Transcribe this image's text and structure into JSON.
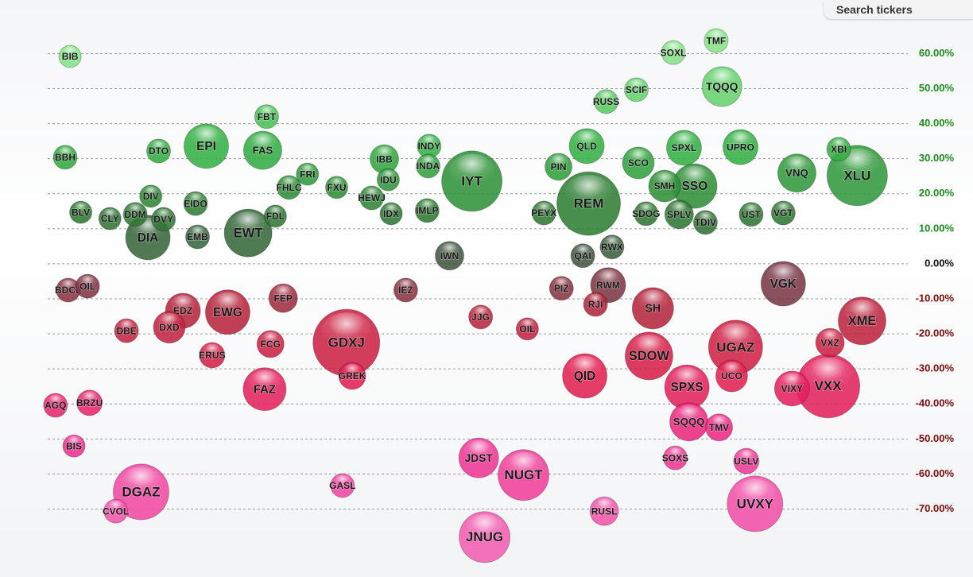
{
  "search": {
    "placeholder": "Search tickers"
  },
  "chart_data": {
    "type": "bubble",
    "categories": [
      "BIB",
      "TMF",
      "SOXL",
      "TQQQ",
      "SCIF",
      "RUSS",
      "FBT",
      "EPI",
      "FAS",
      "DTO",
      "BBH",
      "INDY",
      "INDA",
      "IBB",
      "IDU",
      "QLD",
      "SPXL",
      "UPRO",
      "XBI",
      "XLU",
      "VNQ",
      "PIN",
      "SCO",
      "IYT",
      "SSO",
      "SMH",
      "FRI",
      "FHLC",
      "FXU",
      "HEWJ",
      "DIV",
      "EIDO",
      "REM",
      "BLV",
      "CLY",
      "DDM",
      "DVY",
      "DIA",
      "EMB",
      "EWT",
      "FDL",
      "IMLP",
      "PEYX",
      "SDOG",
      "SPLV",
      "TDIV",
      "UST",
      "VGT",
      "IDX",
      "RWX",
      "QAI",
      "IWN",
      "BDCL",
      "OIL",
      "PIZ",
      "RWM",
      "VGK",
      "IEZ",
      "FEP",
      "EWG",
      "EDZ",
      "DXD",
      "DBE",
      "JJG",
      "OIL",
      "RJI",
      "SH",
      "XME",
      "VXZ",
      "GDXJ",
      "GREK",
      "FCG",
      "ERUS",
      "FAZ",
      "QID",
      "SDOW",
      "UGAZ",
      "SPXS",
      "UCO",
      "VIXY",
      "VXX",
      "SQQQ",
      "TMV",
      "AGQ",
      "BRZU",
      "BIS",
      "SOXS",
      "USLV",
      "JDST",
      "NUGT",
      "GASL",
      "DGAZ",
      "CVOL",
      "RUSL",
      "UVXY",
      "JNUG"
    ],
    "x": [
      7.2,
      73.6,
      69.2,
      74.2,
      65.4,
      62.3,
      27.4,
      21.2,
      27.0,
      16.3,
      6.7,
      44.1,
      44.0,
      39.5,
      39.9,
      60.3,
      70.3,
      76.1,
      86.2,
      88.1,
      81.9,
      57.4,
      65.6,
      48.5,
      71.4,
      68.3,
      31.6,
      29.7,
      34.6,
      38.2,
      15.5,
      20.1,
      60.5,
      8.3,
      11.3,
      13.9,
      16.8,
      15.2,
      20.3,
      25.5,
      28.3,
      43.9,
      55.9,
      66.4,
      69.8,
      72.5,
      77.2,
      80.5,
      40.2,
      62.9,
      59.9,
      46.2,
      7.0,
      9.0,
      57.7,
      62.5,
      80.5,
      41.7,
      29.1,
      23.4,
      18.8,
      17.4,
      13.0,
      49.4,
      54.2,
      61.2,
      67.1,
      88.6,
      85.3,
      35.6,
      36.2,
      27.8,
      21.8,
      27.2,
      60.1,
      66.7,
      75.6,
      70.6,
      75.2,
      81.4,
      85.1,
      70.8,
      73.9,
      5.7,
      9.2,
      7.6,
      69.4,
      76.7,
      49.2,
      53.8,
      35.2,
      14.5,
      11.9,
      62.1,
      77.6,
      49.8
    ],
    "values": [
      59.2,
      63.7,
      60.3,
      50.6,
      49.7,
      46.3,
      42.0,
      33.6,
      32.4,
      32.2,
      30.4,
      33.6,
      27.9,
      29.9,
      24.0,
      33.6,
      33.1,
      33.3,
      32.7,
      25.2,
      25.9,
      27.7,
      28.8,
      23.6,
      22.2,
      22.2,
      25.6,
      21.8,
      21.8,
      18.8,
      19.3,
      17.2,
      17.2,
      14.7,
      12.9,
      14.1,
      12.7,
      7.5,
      7.7,
      8.8,
      13.6,
      15.2,
      14.5,
      14.3,
      14.1,
      11.8,
      14.1,
      14.5,
      14.3,
      4.8,
      2.3,
      2.3,
      -7.5,
      -6.4,
      -7.0,
      -6.1,
      -5.7,
      -7.5,
      -9.8,
      -13.8,
      -13.4,
      -18.1,
      -19.1,
      -15.2,
      -18.6,
      -11.6,
      -12.7,
      -16.3,
      -22.5,
      -22.5,
      -32.0,
      -22.9,
      -26.1,
      -35.8,
      -32.0,
      -26.3,
      -23.8,
      -35.2,
      -32.0,
      -35.6,
      -34.9,
      -45.1,
      -46.7,
      -40.4,
      -39.7,
      -52.0,
      -55.4,
      -56.3,
      -55.4,
      -60.3,
      -63.3,
      -65.1,
      -70.6,
      -70.6,
      -68.5,
      -78.0
    ],
    "sizes": [
      14,
      15,
      15,
      25,
      15,
      15,
      15,
      28,
      24,
      15,
      15,
      15,
      15,
      18,
      14,
      22,
      22,
      22,
      15,
      38,
      24,
      17,
      20,
      38,
      28,
      20,
      14,
      15,
      14,
      15,
      14,
      15,
      40,
      14,
      14,
      15,
      15,
      28,
      15,
      30,
      14,
      15,
      15,
      15,
      18,
      15,
      15,
      15,
      14,
      15,
      15,
      18,
      15,
      15,
      15,
      22,
      28,
      15,
      18,
      28,
      22,
      20,
      15,
      15,
      14,
      15,
      26,
      30,
      18,
      42,
      17,
      17,
      16,
      27,
      28,
      30,
      34,
      28,
      20,
      22,
      40,
      24,
      17,
      15,
      16,
      14,
      15,
      16,
      25,
      32,
      15,
      35,
      15,
      18,
      35,
      32
    ],
    "xlim": [
      0,
      100
    ],
    "ylim": [
      -89.4,
      75.3
    ],
    "yticks": [
      {
        "value": 60,
        "label": "60.00%"
      },
      {
        "value": 50,
        "label": "50.00%"
      },
      {
        "value": 40,
        "label": "40.00%"
      },
      {
        "value": 30,
        "label": "30.00%"
      },
      {
        "value": 20,
        "label": "20.00%"
      },
      {
        "value": 10,
        "label": "10.00%"
      },
      {
        "value": 0,
        "label": "0.00%"
      },
      {
        "value": -10,
        "label": "-10.00%"
      },
      {
        "value": -20,
        "label": "-20.00%"
      },
      {
        "value": -30,
        "label": "-30.00%"
      },
      {
        "value": -40,
        "label": "-40.00%"
      },
      {
        "value": -50,
        "label": "-50.00%"
      },
      {
        "value": -60,
        "label": "-60.00%"
      },
      {
        "value": -70,
        "label": "-70.00%"
      }
    ],
    "grid": true,
    "tick_colors": {
      "positive": "#1d8a1d",
      "zero": "#111111",
      "negative": "#7a0a0a"
    },
    "color_scale": [
      [
        60,
        "#86e486"
      ],
      [
        35,
        "#34b545"
      ],
      [
        15,
        "#2e7a32"
      ],
      [
        3,
        "#3f5a42"
      ],
      [
        -4,
        "#6b3d47"
      ],
      [
        -12,
        "#b3253c"
      ],
      [
        -30,
        "#df1f4b"
      ],
      [
        -48,
        "#ee2a88"
      ],
      [
        -75,
        "#f35db2"
      ]
    ]
  }
}
